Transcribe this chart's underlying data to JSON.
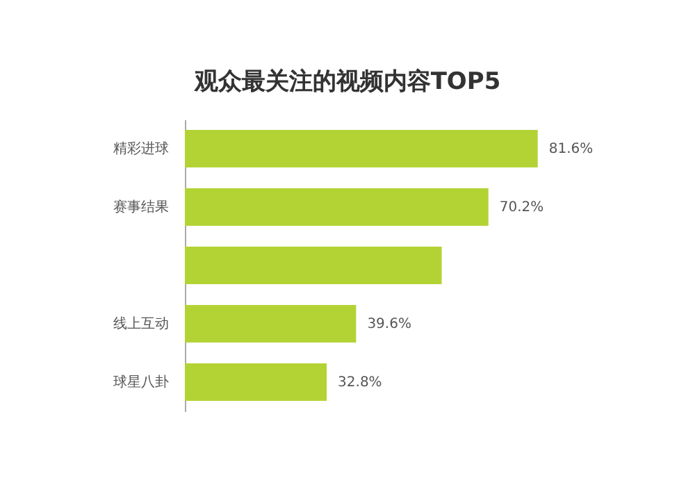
{
  "chart_data": {
    "type": "bar",
    "orientation": "horizontal",
    "title": "观众最关注的视频内容TOP5",
    "categories": [
      "精彩进球",
      "赛事结果",
      null,
      "线上互动",
      "球星八卦"
    ],
    "values": [
      81.6,
      70.2,
      59.4,
      39.6,
      32.8
    ],
    "value_labels": [
      "81.6%",
      "70.2%",
      null,
      "39.6%",
      "32.8%"
    ],
    "color": "#b3d334"
  }
}
